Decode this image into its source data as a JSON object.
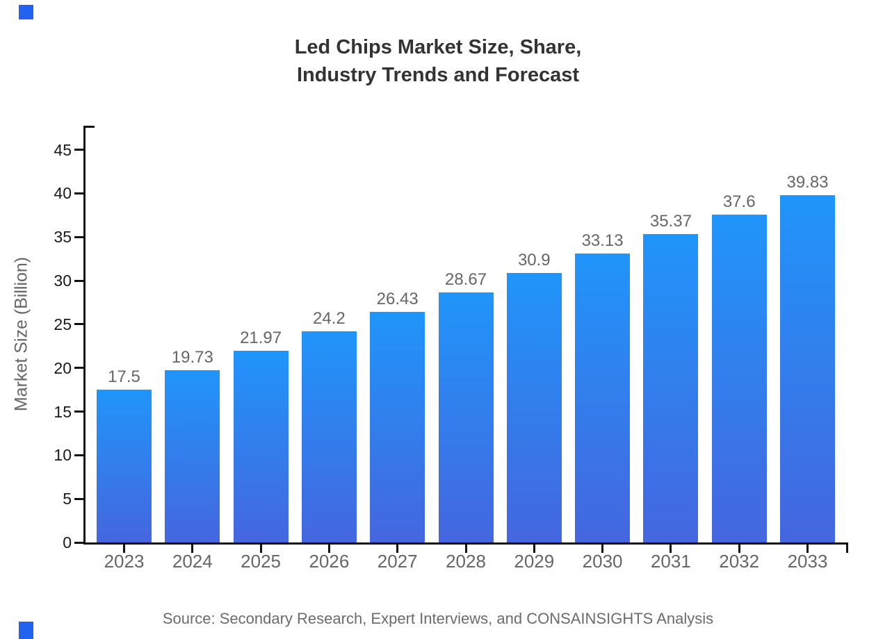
{
  "header": {
    "title_line1": "Led Chips Market Size, Share,",
    "title_line2": "Industry Trends and Forecast"
  },
  "footer": {
    "source": "Source: Secondary Research, Expert Interviews, and CONSAINSIGHTS Analysis"
  },
  "chart_data": {
    "type": "bar",
    "title": "Led Chips Market Size, Share, Industry Trends and Forecast",
    "categories": [
      "2023",
      "2024",
      "2025",
      "2026",
      "2027",
      "2028",
      "2029",
      "2030",
      "2031",
      "2032",
      "2033"
    ],
    "values": [
      17.5,
      19.73,
      21.97,
      24.2,
      26.43,
      28.67,
      30.9,
      33.13,
      35.37,
      37.6,
      39.83
    ],
    "value_labels": [
      "17.5",
      "19.73",
      "21.97",
      "24.2",
      "26.43",
      "28.67",
      "30.9",
      "33.13",
      "35.37",
      "37.6",
      "39.83"
    ],
    "xlabel": "",
    "ylabel": "Market Size (Billion)",
    "yticks": [
      0,
      5,
      10,
      15,
      20,
      25,
      30,
      35,
      40,
      45
    ],
    "ylim": [
      0,
      47.75
    ],
    "grid": false,
    "legend_position": "none",
    "colors": {
      "bar_gradient_top": "#2095FA",
      "bar_gradient_bottom": "#4566DF",
      "axis": "#111111",
      "y_tick_label": "#1a1a1a",
      "category_label": "#666666",
      "value_label": "#666666",
      "title": "#333333",
      "source_text": "#6b6b6b",
      "corner_marker": "#2262F1"
    }
  }
}
